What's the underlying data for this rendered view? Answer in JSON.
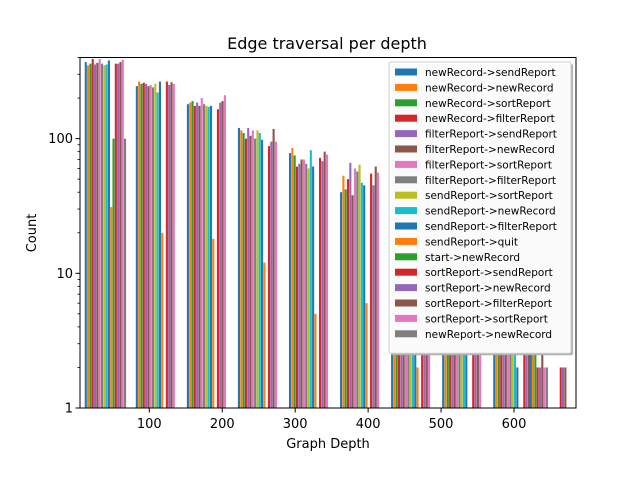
{
  "chart_data": {
    "type": "bar",
    "title": "Edge traversal per depth",
    "xlabel": "Graph Depth",
    "ylabel": "Count",
    "yscale": "log",
    "ylim": [
      1,
      400
    ],
    "xlim": [
      5,
      685
    ],
    "x_ticks": [
      100,
      200,
      300,
      400,
      500,
      600
    ],
    "y_ticks": [
      {
        "value": 1,
        "label": "1"
      },
      {
        "value": 10,
        "label": "10"
      },
      {
        "value": 100,
        "label": "100"
      }
    ],
    "legend_position": "upper right",
    "groups": [
      {
        "x": 40,
        "width": 57
      },
      {
        "x": 110,
        "width": 57
      },
      {
        "x": 180,
        "width": 57
      },
      {
        "x": 250,
        "width": 57
      },
      {
        "x": 320,
        "width": 57
      },
      {
        "x": 390,
        "width": 57
      },
      {
        "x": 460,
        "width": 57
      },
      {
        "x": 530,
        "width": 57
      },
      {
        "x": 600,
        "width": 57
      },
      {
        "x": 650,
        "width": 57
      }
    ],
    "series": [
      {
        "name": "newRecord->sendReport",
        "color": "#1f77b4",
        "values": [
          370,
          245,
          180,
          120,
          78,
          40,
          30,
          18,
          10,
          6
        ]
      },
      {
        "name": "newRecord->newRecord",
        "color": "#ff7f0e",
        "values": [
          350,
          265,
          185,
          115,
          85,
          53,
          22,
          14,
          8,
          3
        ]
      },
      {
        "name": "newRecord->sortReport",
        "color": "#2ca02c",
        "values": [
          360,
          255,
          190,
          110,
          75,
          42,
          37,
          16,
          9,
          4
        ]
      },
      {
        "name": "newRecord->filterReport",
        "color": "#d62728",
        "values": [
          390,
          260,
          175,
          100,
          62,
          50,
          26,
          15,
          7,
          2
        ]
      },
      {
        "name": "filterReport->sendReport",
        "color": "#9467bd",
        "values": [
          355,
          255,
          185,
          120,
          65,
          66,
          24,
          13,
          8,
          2
        ]
      },
      {
        "name": "filterReport->newRecord",
        "color": "#8c564b",
        "values": [
          365,
          245,
          175,
          105,
          70,
          38,
          20,
          12,
          6,
          3
        ]
      },
      {
        "name": "filterReport->sortReport",
        "color": "#e377c2",
        "values": [
          390,
          250,
          200,
          115,
          70,
          60,
          19,
          11,
          7,
          2
        ]
      },
      {
        "name": "filterReport->filterReport",
        "color": "#7f7f7f",
        "values": [
          360,
          240,
          180,
          100,
          65,
          57,
          17,
          10,
          5,
          2
        ]
      },
      {
        "name": "sendReport->sortReport",
        "color": "#bcbd22",
        "values": [
          350,
          255,
          175,
          115,
          60,
          64,
          8,
          9,
          4,
          1
        ]
      },
      {
        "name": "sendReport->newRecord",
        "color": "#17becf",
        "values": [
          355,
          220,
          172,
          110,
          82,
          47,
          6,
          8,
          3,
          1
        ]
      },
      {
        "name": "sendReport->filterReport",
        "color": "#1f77b4",
        "values": [
          380,
          265,
          175,
          98,
          62,
          45,
          4,
          7,
          2,
          1
        ]
      },
      {
        "name": "sendReport->quit",
        "color": "#ff7f0e",
        "values": [
          31,
          20,
          18,
          12,
          5,
          6,
          2,
          1,
          1,
          1
        ]
      },
      {
        "name": "start->newRecord",
        "color": "#2ca02c",
        "values": [
          100,
          1,
          1,
          1,
          1,
          1,
          1,
          1,
          1,
          1
        ]
      },
      {
        "name": "sortReport->sendReport",
        "color": "#d62728",
        "values": [
          360,
          265,
          165,
          88,
          72,
          55,
          20,
          12,
          6,
          2
        ]
      },
      {
        "name": "sortReport->newRecord",
        "color": "#9467bd",
        "values": [
          360,
          250,
          185,
          95,
          68,
          45,
          18,
          11,
          5,
          2
        ]
      },
      {
        "name": "sortReport->filterReport",
        "color": "#8c564b",
        "values": [
          370,
          262,
          190,
          118,
          80,
          62,
          16,
          10,
          5,
          2
        ]
      },
      {
        "name": "sortReport->sortReport",
        "color": "#e377c2",
        "values": [
          385,
          255,
          210,
          95,
          76,
          56,
          15,
          9,
          4,
          1
        ]
      },
      {
        "name": "newReport->newRecord",
        "color": "#7f7f7f",
        "values": [
          100,
          1,
          1,
          1,
          1,
          1,
          1,
          1,
          1,
          1
        ]
      }
    ]
  }
}
